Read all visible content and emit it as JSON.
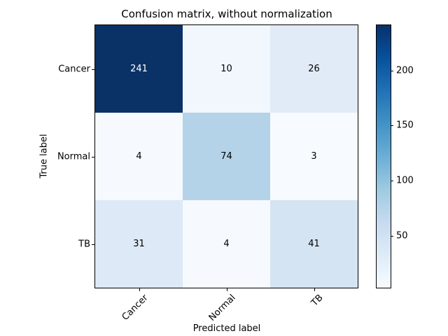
{
  "chart_data": {
    "type": "heatmap",
    "title": "Confusion matrix, without normalization",
    "xlabel": "Predicted label",
    "ylabel": "True label",
    "x_tick_labels": [
      "Cancer",
      "Normal",
      "TB"
    ],
    "y_tick_labels": [
      "Cancer",
      "Normal",
      "TB"
    ],
    "matrix": [
      [
        241,
        10,
        26
      ],
      [
        4,
        74,
        3
      ],
      [
        31,
        4,
        41
      ]
    ],
    "cell_colors": [
      [
        "#0a3266",
        "#f1f7fd",
        "#e0ebf7"
      ],
      [
        "#f6fafe",
        "#b4d3e8",
        "#f7fbff"
      ],
      [
        "#dde9f6",
        "#f6fafe",
        "#d4e4f3"
      ]
    ],
    "cell_text_colors": [
      [
        "#ffffff",
        "#000000",
        "#000000"
      ],
      [
        "#000000",
        "#000000",
        "#000000"
      ],
      [
        "#000000",
        "#000000",
        "#000000"
      ]
    ],
    "colormap_name": "Blues",
    "vmin": 3,
    "vmax": 241,
    "legend_position": "colorbar-right",
    "grid": false,
    "colorbar": {
      "ticks": [
        50,
        100,
        150,
        200
      ],
      "gradient_stops_light_to_dark": [
        "#f7fbff",
        "#deebf7",
        "#c6dbef",
        "#9ecae1",
        "#6baed6",
        "#4292c6",
        "#2171b5",
        "#08519c",
        "#08306b"
      ]
    }
  }
}
